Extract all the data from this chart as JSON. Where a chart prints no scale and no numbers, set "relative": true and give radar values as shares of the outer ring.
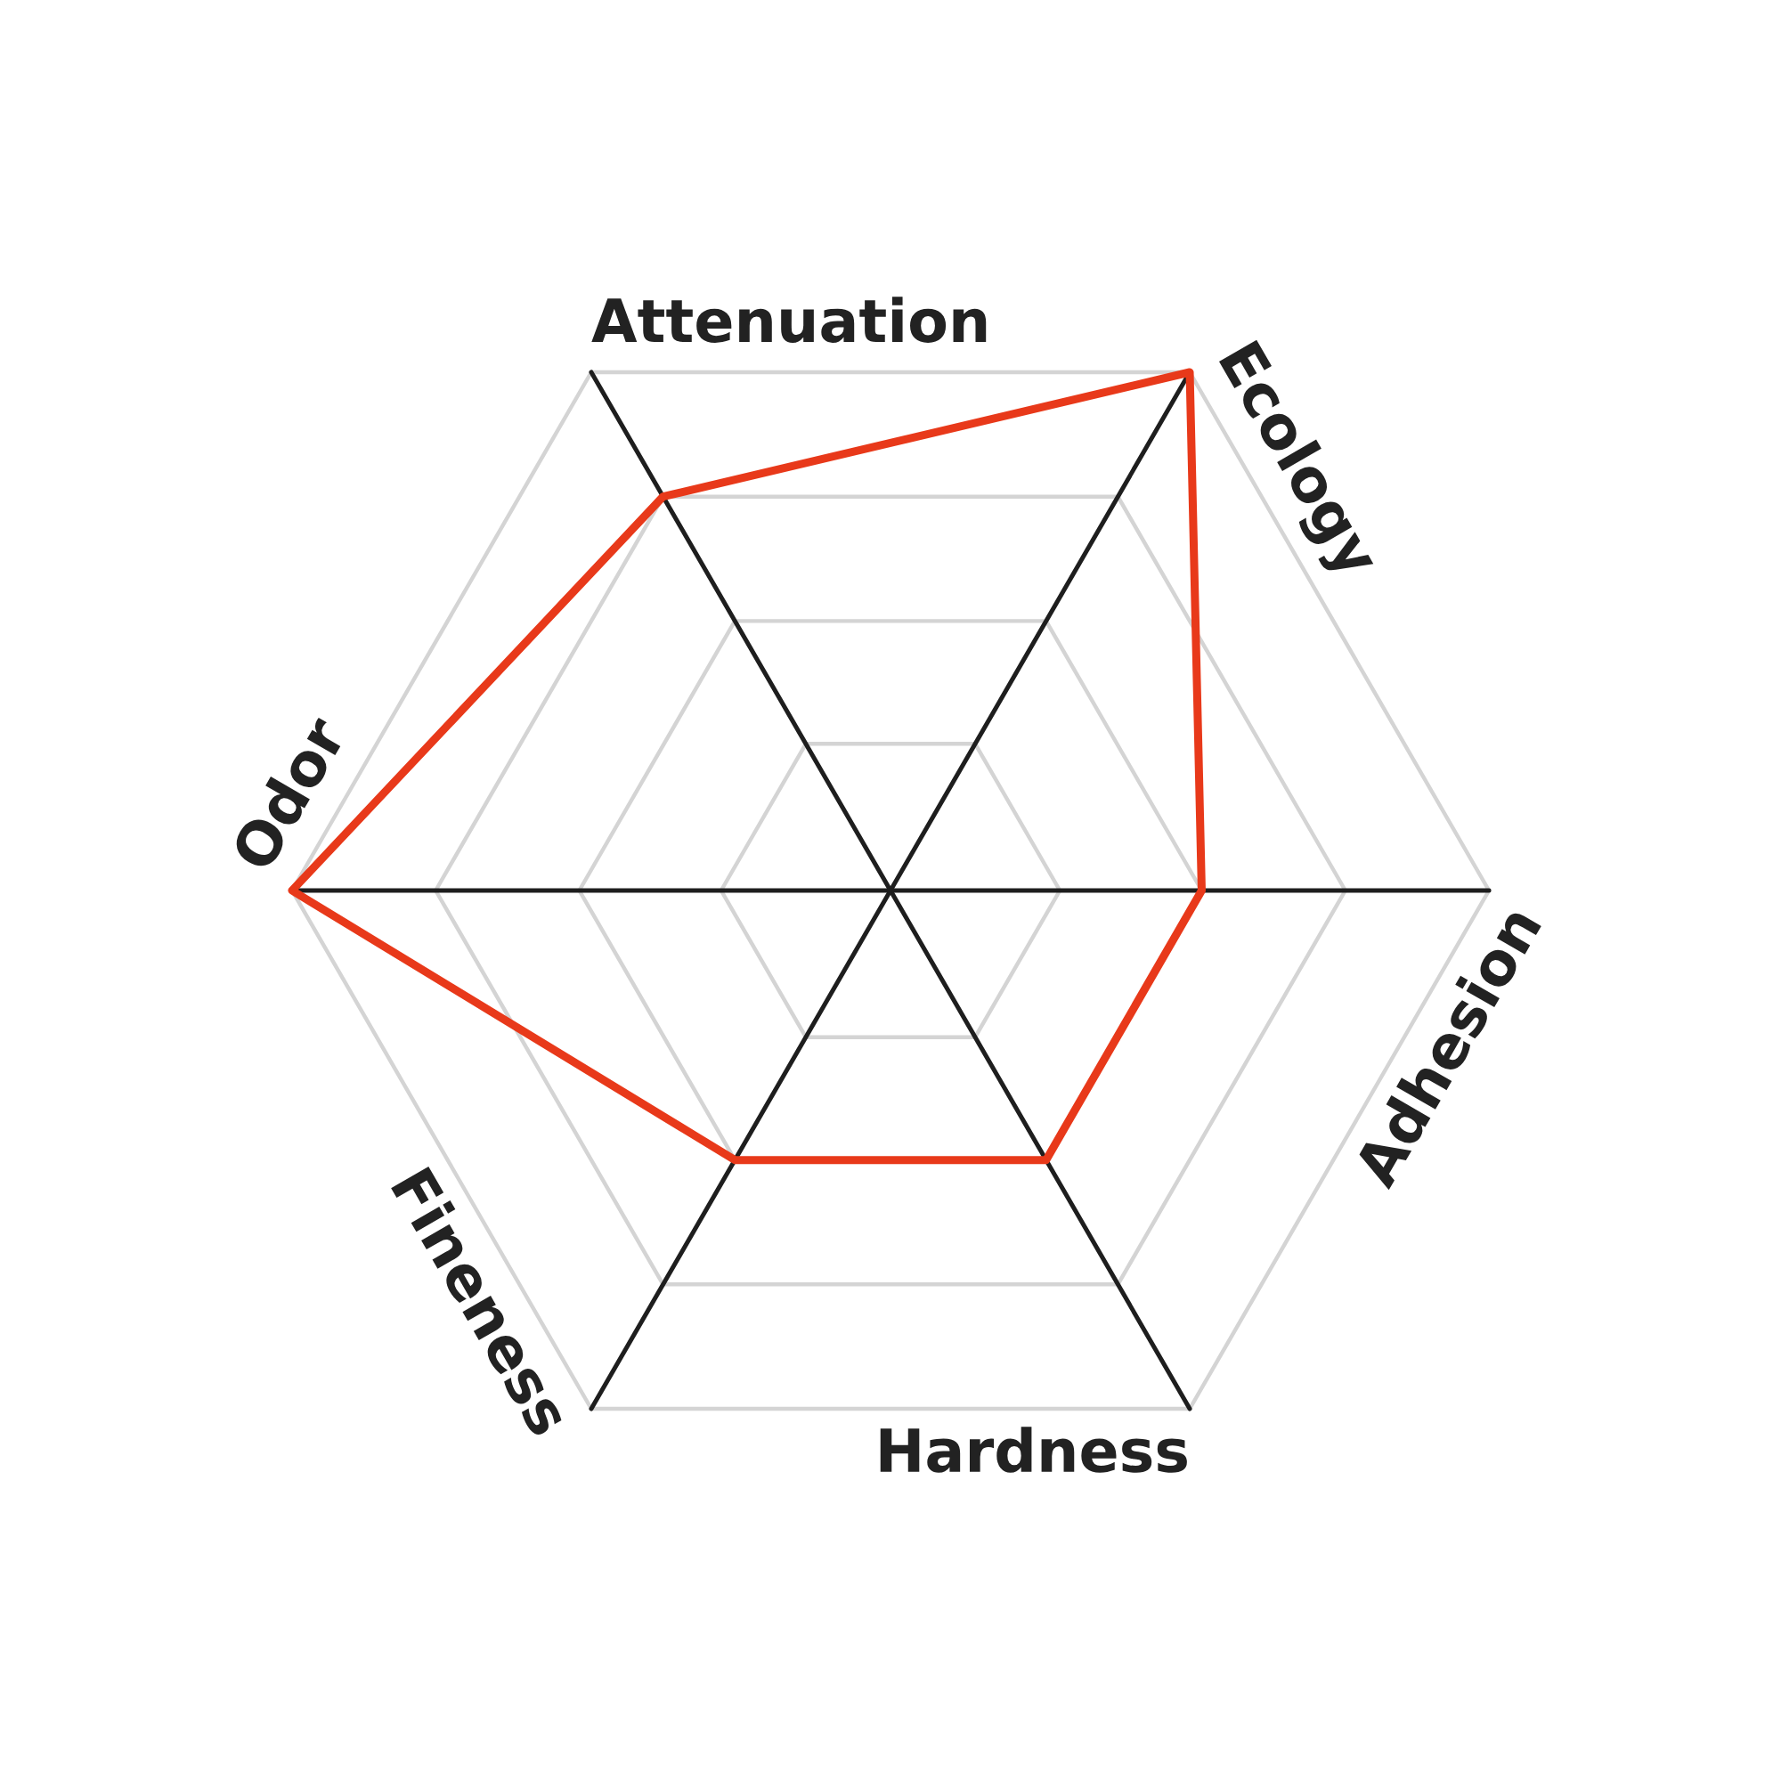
{
  "chart_data": {
    "type": "radar",
    "relative": true,
    "grid": true,
    "categories": [
      "Attenuation",
      "Ecology",
      "Adhesion",
      "Hardness",
      "Fineness",
      "Odor"
    ],
    "series": [
      {
        "color": "#e8391a",
        "values": [
          0.76,
          1.0,
          0.52,
          0.52,
          0.52,
          1.0
        ]
      }
    ]
  }
}
